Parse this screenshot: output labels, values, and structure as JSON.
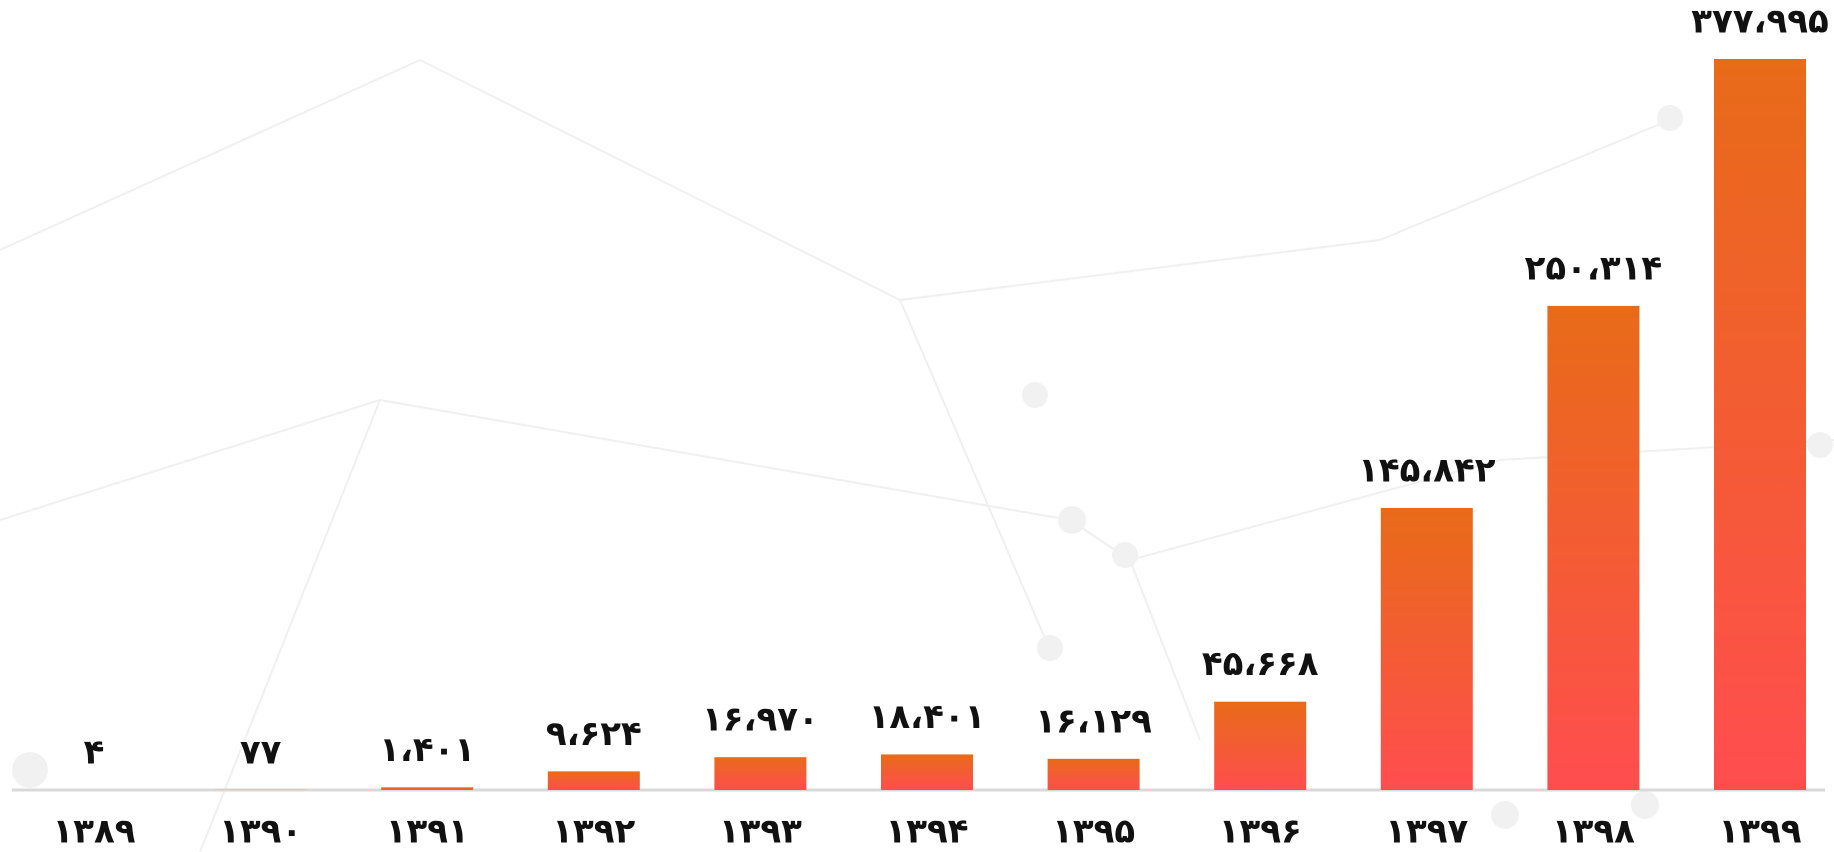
{
  "chart_data": {
    "type": "bar",
    "categories": [
      "۱۳۸۹",
      "۱۳۹۰",
      "۱۳۹۱",
      "۱۳۹۲",
      "۱۳۹۳",
      "۱۳۹۴",
      "۱۳۹۵",
      "۱۳۹۶",
      "۱۳۹۷",
      "۱۳۹۸",
      "۱۳۹۹"
    ],
    "values": [
      4,
      77,
      1401,
      9624,
      16970,
      18401,
      16129,
      45668,
      145842,
      250314,
      377995
    ],
    "value_labels": [
      "۴",
      "۷۷",
      "۱،۴۰۱",
      "۹،۶۲۴",
      "۱۶،۹۷۰",
      "۱۸،۴۰۱",
      "۱۶،۱۲۹",
      "۴۵،۶۶۸",
      "۱۴۵،۸۴۲",
      "۲۵۰،۳۱۴",
      "۳۷۷،۹۹۵"
    ],
    "color": [
      "#e86b18",
      "#ff4d4f"
    ]
  }
}
